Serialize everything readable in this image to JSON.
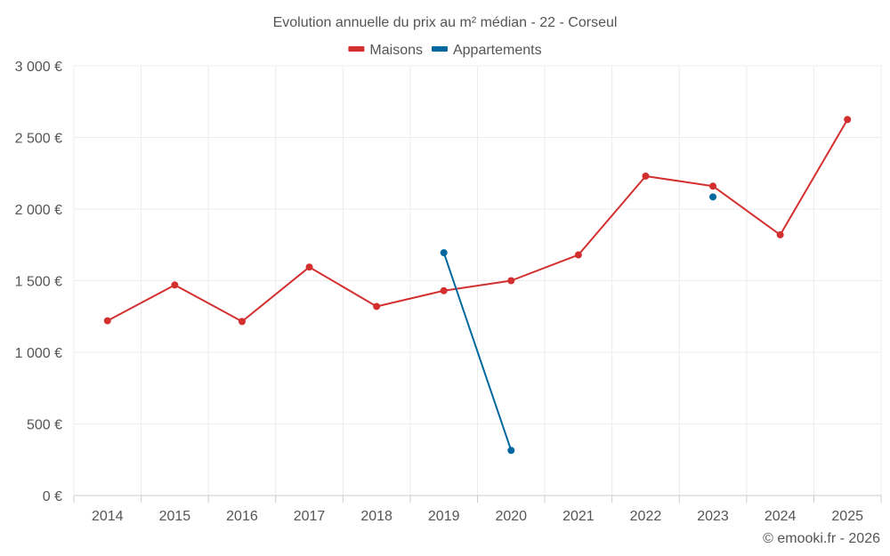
{
  "chart_data": {
    "type": "line",
    "title": "Evolution annuelle du prix au m² médian - 22 - Corseul",
    "categories": [
      "2014",
      "2015",
      "2016",
      "2017",
      "2018",
      "2019",
      "2020",
      "2021",
      "2022",
      "2023",
      "2024",
      "2025"
    ],
    "series": [
      {
        "name": "Maisons",
        "color": "#d32f2f",
        "values": [
          1220,
          1470,
          1215,
          1595,
          1320,
          1430,
          1500,
          1680,
          2230,
          2160,
          1820,
          2625
        ]
      },
      {
        "name": "Appartements",
        "color": "#00689e",
        "values": [
          null,
          null,
          null,
          null,
          null,
          1695,
          315,
          null,
          null,
          2085,
          null,
          null
        ]
      }
    ],
    "y_ticks": [
      "0 €",
      "500 €",
      "1 000 €",
      "1 500 €",
      "2 000 €",
      "2 500 €",
      "3 000 €"
    ],
    "ylim": [
      0,
      3000
    ],
    "grid": true,
    "legend_position": "top-center",
    "xlabel": "",
    "ylabel": ""
  },
  "credit": "© emooki.fr - 2026"
}
